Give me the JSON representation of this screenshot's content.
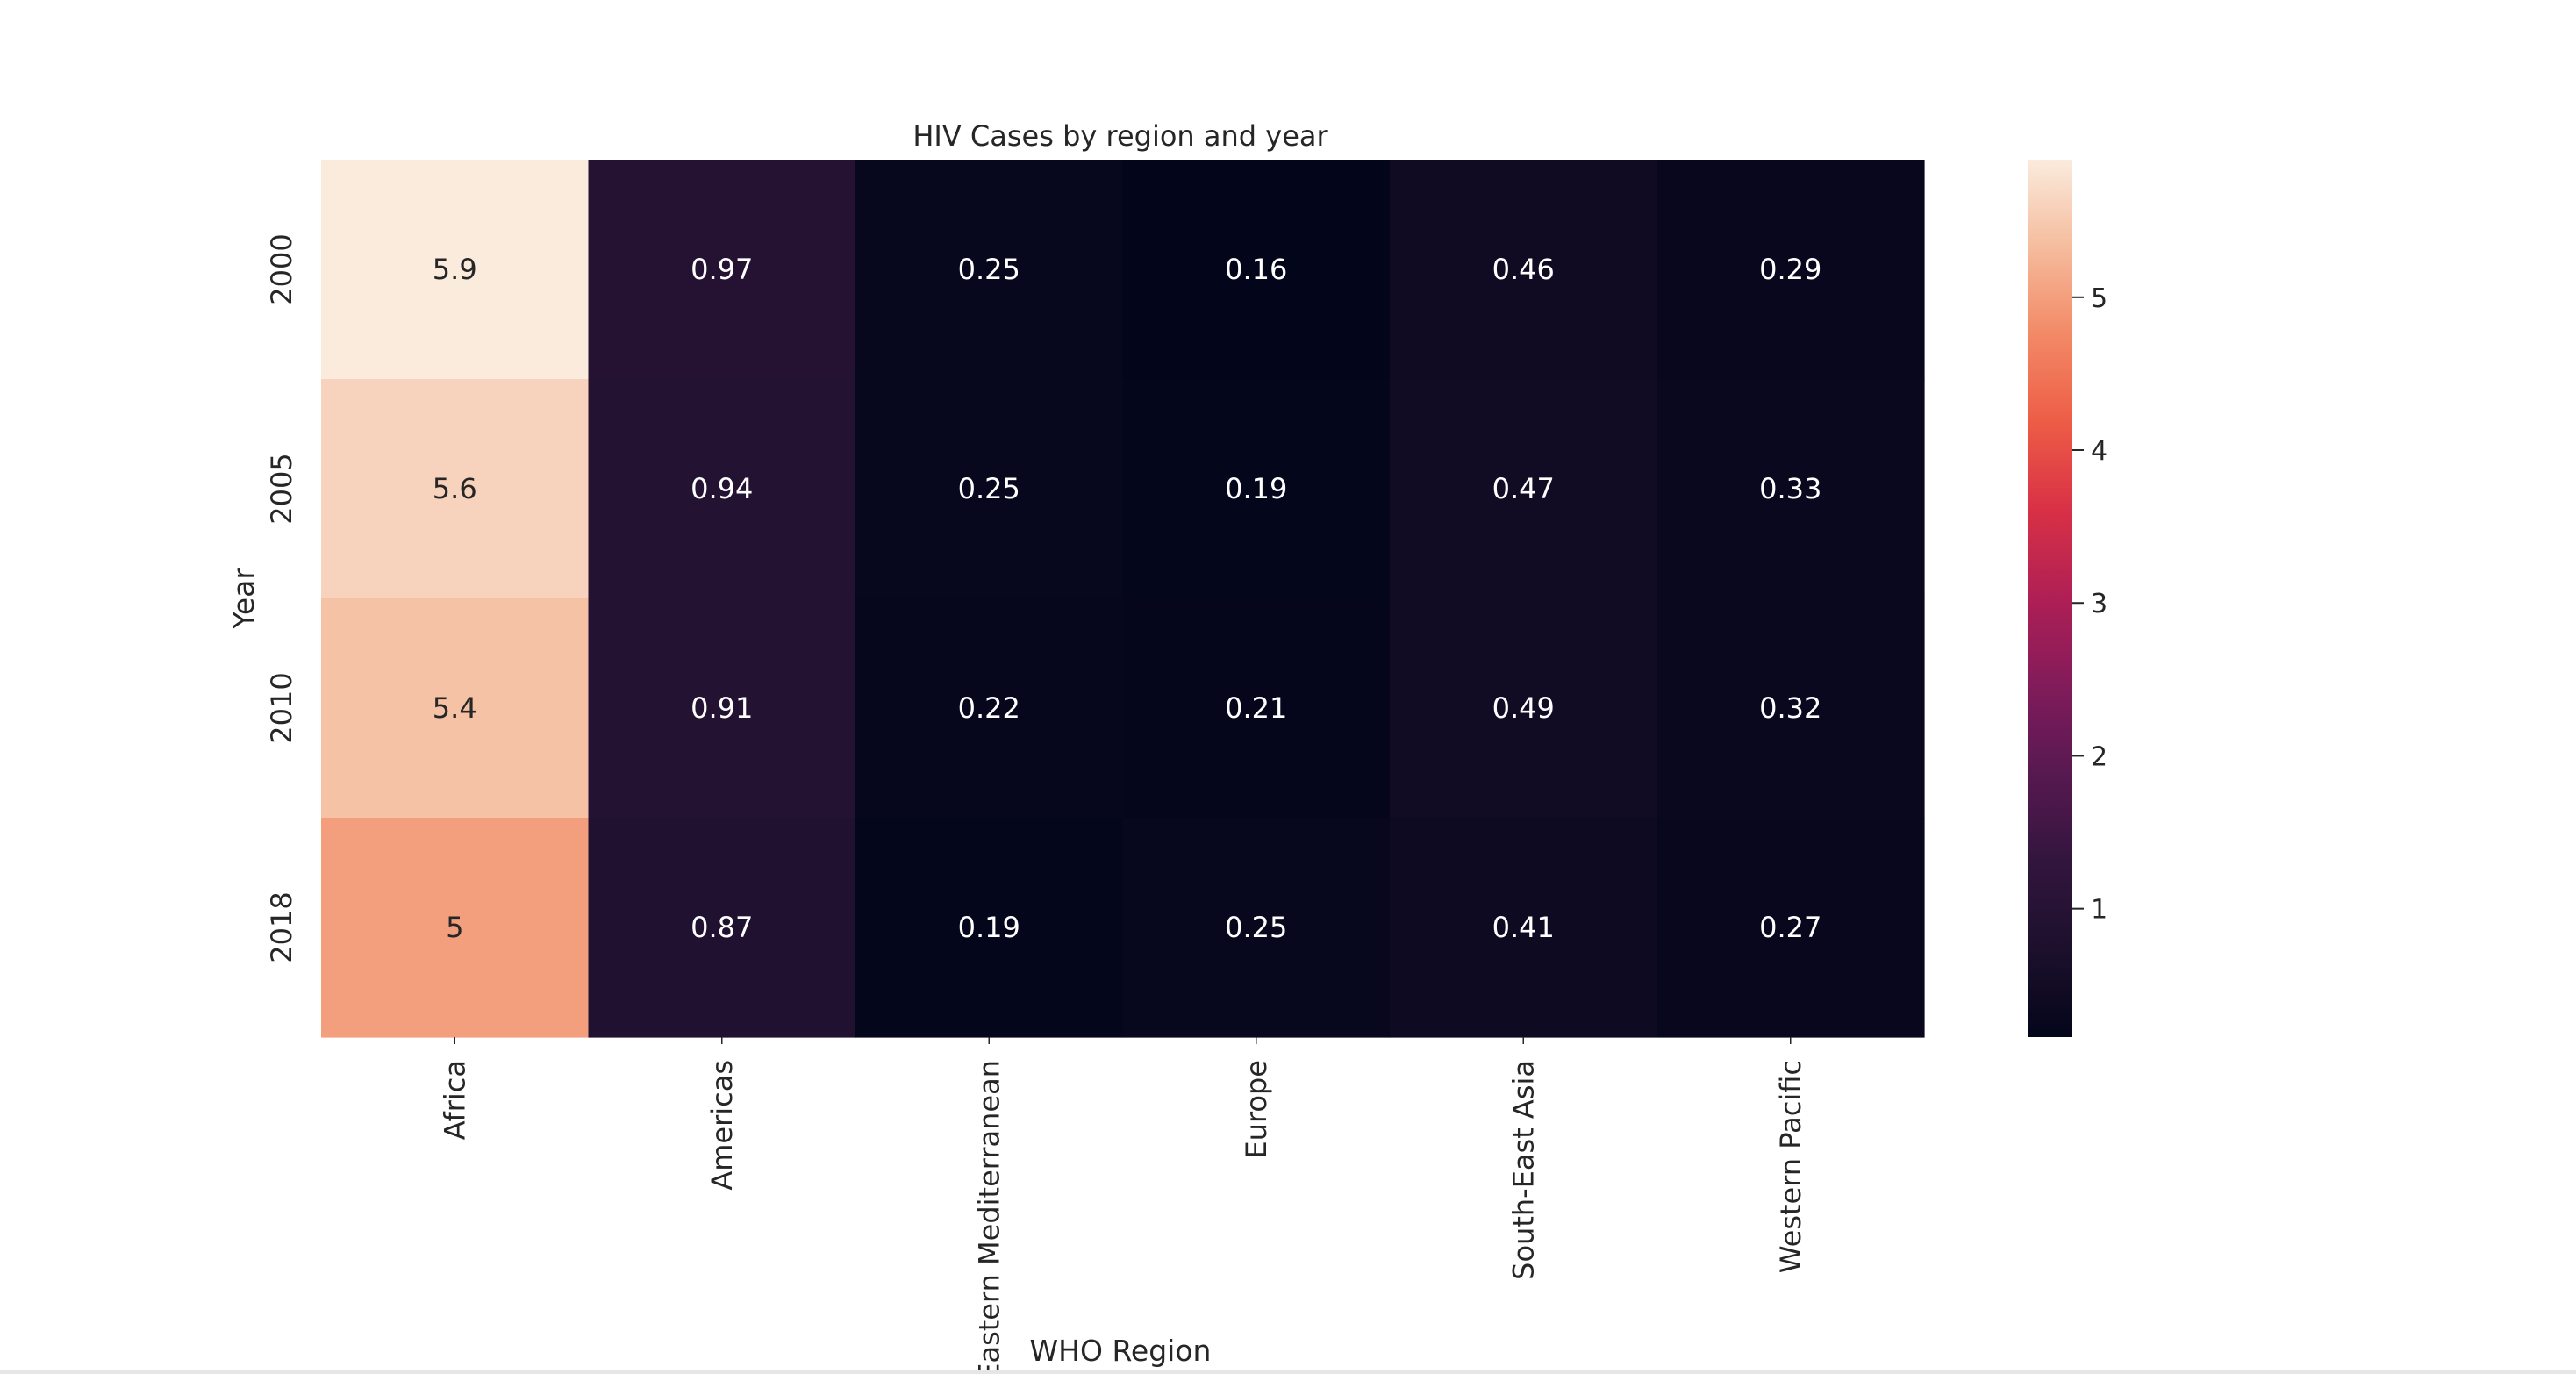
{
  "chart_data": {
    "type": "heatmap",
    "title": "HIV Cases by region and year",
    "xlabel": "WHO Region",
    "ylabel": "Year",
    "x_categories": [
      "Africa",
      "Americas",
      "Eastern Mediterranean",
      "Europe",
      "South-East Asia",
      "Western Pacific"
    ],
    "y_categories": [
      "2000",
      "2005",
      "2010",
      "2018"
    ],
    "values": [
      [
        5.9,
        0.97,
        0.25,
        0.16,
        0.46,
        0.29
      ],
      [
        5.6,
        0.94,
        0.25,
        0.19,
        0.47,
        0.33
      ],
      [
        5.4,
        0.91,
        0.22,
        0.21,
        0.49,
        0.32
      ],
      [
        5.0,
        0.87,
        0.19,
        0.25,
        0.41,
        0.27
      ]
    ],
    "cell_labels": [
      [
        "5.9",
        "0.97",
        "0.25",
        "0.16",
        "0.46",
        "0.29"
      ],
      [
        "5.6",
        "0.94",
        "0.25",
        "0.19",
        "0.47",
        "0.33"
      ],
      [
        "5.4",
        "0.91",
        "0.22",
        "0.21",
        "0.49",
        "0.32"
      ],
      [
        "5",
        "0.87",
        "0.19",
        "0.25",
        "0.41",
        "0.27"
      ]
    ],
    "colorbar": {
      "min": 0.16,
      "max": 5.9,
      "ticks": [
        1,
        2,
        3,
        4,
        5
      ]
    },
    "colormap": "rocket",
    "grid": false
  }
}
